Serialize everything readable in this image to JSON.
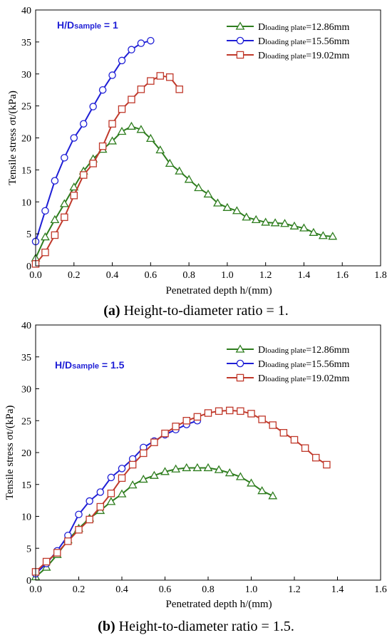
{
  "chart_data": [
    {
      "type": "line",
      "title": "",
      "xlabel": "Penetrated depth h/(mm)",
      "ylabel": "Tensile stress σt/(kPa)",
      "xlim": [
        0,
        1.8
      ],
      "ylim": [
        0,
        40
      ],
      "xticks": [
        "0.0",
        "0.2",
        "0.4",
        "0.6",
        "0.8",
        "1.0",
        "1.2",
        "1.4",
        "1.6",
        "1.8"
      ],
      "yticks": [
        "0",
        "5",
        "10",
        "15",
        "20",
        "25",
        "30",
        "35",
        "40"
      ],
      "annotation": {
        "prefix": "H/D",
        "sub": "sample",
        "suffix": " = 1"
      },
      "caption": {
        "bold": "(a)",
        "text": " Height-to-diameter ratio = 1."
      },
      "legend_position": "top-right",
      "series": [
        {
          "name_prefix": "D",
          "name_sub": "loading plate",
          "name_suffix": "=12.86mm",
          "color": "#2e7d1e",
          "marker": "triangle",
          "x": [
            0,
            0.05,
            0.1,
            0.15,
            0.2,
            0.25,
            0.3,
            0.35,
            0.4,
            0.45,
            0.5,
            0.55,
            0.6,
            0.65,
            0.7,
            0.75,
            0.8,
            0.85,
            0.9,
            0.95,
            1.0,
            1.05,
            1.1,
            1.15,
            1.2,
            1.25,
            1.3,
            1.35,
            1.4,
            1.45,
            1.5,
            1.55
          ],
          "y": [
            1.2,
            4.5,
            7.2,
            9.7,
            12.3,
            14.8,
            16.7,
            18.2,
            19.5,
            21.0,
            21.8,
            21.3,
            19.9,
            18.1,
            16.0,
            14.8,
            13.5,
            12.2,
            11.2,
            9.8,
            9.1,
            8.6,
            7.6,
            7.2,
            6.8,
            6.7,
            6.6,
            6.2,
            5.9,
            5.2,
            4.7,
            4.6
          ]
        },
        {
          "name_prefix": "D",
          "name_sub": "loading plate",
          "name_suffix": "=15.56mm",
          "color": "#1f1fd6",
          "marker": "circle",
          "x": [
            0,
            0.05,
            0.1,
            0.15,
            0.2,
            0.25,
            0.3,
            0.35,
            0.4,
            0.45,
            0.5,
            0.55,
            0.6
          ],
          "y": [
            3.8,
            8.6,
            13.3,
            16.9,
            20.0,
            22.2,
            24.9,
            27.5,
            29.8,
            32.1,
            33.8,
            34.8,
            35.2
          ]
        },
        {
          "name_prefix": "D",
          "name_sub": "loading plate",
          "name_suffix": "=19.02mm",
          "color": "#c0392b",
          "marker": "square",
          "x": [
            0,
            0.05,
            0.1,
            0.15,
            0.2,
            0.25,
            0.3,
            0.35,
            0.4,
            0.45,
            0.5,
            0.55,
            0.6,
            0.65,
            0.7,
            0.75
          ],
          "y": [
            0.3,
            2.1,
            4.8,
            7.6,
            11.0,
            14.2,
            16.0,
            18.7,
            22.2,
            24.5,
            26.0,
            27.6,
            28.9,
            29.7,
            29.5,
            27.6
          ]
        }
      ]
    },
    {
      "type": "line",
      "title": "",
      "xlabel": "Penetrated depth h/(mm)",
      "ylabel": "Tensile stress σt/(kPa)",
      "xlim": [
        0,
        1.6
      ],
      "ylim": [
        0,
        40
      ],
      "xticks": [
        "0.0",
        "0.2",
        "0.4",
        "0.6",
        "0.8",
        "1.0",
        "1.2",
        "1.4",
        "1.6"
      ],
      "yticks": [
        "0",
        "5",
        "10",
        "15",
        "20",
        "25",
        "30",
        "35",
        "40"
      ],
      "annotation": {
        "prefix": "H/D",
        "sub": "sample",
        "suffix": " = 1.5"
      },
      "caption": {
        "bold": "(b)",
        "text": " Height-to-diameter ratio = 1.5."
      },
      "legend_position": "top-right",
      "series": [
        {
          "name_prefix": "D",
          "name_sub": "loading plate",
          "name_suffix": "=12.86mm",
          "color": "#2e7d1e",
          "marker": "triangle",
          "x": [
            0,
            0.05,
            0.1,
            0.15,
            0.2,
            0.25,
            0.3,
            0.35,
            0.4,
            0.45,
            0.5,
            0.55,
            0.6,
            0.65,
            0.7,
            0.75,
            0.8,
            0.85,
            0.9,
            0.95,
            1.0,
            1.05,
            1.1
          ],
          "y": [
            0.5,
            2.0,
            4.0,
            6.3,
            8.1,
            9.7,
            10.9,
            12.3,
            13.5,
            14.9,
            15.8,
            16.4,
            17.0,
            17.4,
            17.6,
            17.6,
            17.6,
            17.3,
            16.8,
            16.2,
            15.2,
            14.0,
            13.2
          ]
        },
        {
          "name_prefix": "D",
          "name_sub": "loading plate",
          "name_suffix": "=15.56mm",
          "color": "#1f1fd6",
          "marker": "circle",
          "x": [
            0,
            0.05,
            0.1,
            0.15,
            0.2,
            0.25,
            0.3,
            0.35,
            0.4,
            0.45,
            0.5,
            0.55,
            0.6,
            0.65,
            0.7,
            0.75
          ],
          "y": [
            1.0,
            2.6,
            4.6,
            7.0,
            10.3,
            12.4,
            13.8,
            16.1,
            17.5,
            19.0,
            20.8,
            21.8,
            22.8,
            23.6,
            24.4,
            25.0
          ]
        },
        {
          "name_prefix": "D",
          "name_sub": "loading plate",
          "name_suffix": "=19.02mm",
          "color": "#c0392b",
          "marker": "square",
          "x": [
            0,
            0.05,
            0.1,
            0.15,
            0.2,
            0.25,
            0.3,
            0.35,
            0.4,
            0.45,
            0.5,
            0.55,
            0.6,
            0.65,
            0.7,
            0.75,
            0.8,
            0.85,
            0.9,
            0.95,
            1.0,
            1.05,
            1.1,
            1.15,
            1.2,
            1.25,
            1.3,
            1.35
          ],
          "y": [
            1.3,
            2.9,
            4.3,
            6.1,
            7.9,
            9.5,
            11.5,
            13.6,
            16.0,
            18.1,
            19.9,
            21.6,
            23.0,
            24.1,
            25.0,
            25.6,
            26.2,
            26.5,
            26.6,
            26.5,
            26.1,
            25.2,
            24.3,
            23.1,
            22.0,
            20.7,
            19.2,
            18.1
          ]
        }
      ]
    }
  ]
}
